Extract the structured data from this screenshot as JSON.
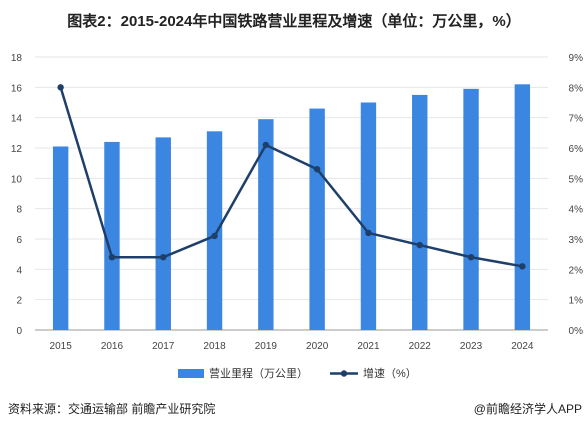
{
  "title": "图表2：2015-2024年中国铁路营业里程及增速（单位：万公里，%）",
  "source": "资料来源：交通运输部  前瞻产业研究院",
  "credit": "@前瞻经济学人APP",
  "chart_data": {
    "type": "bar",
    "categories": [
      "2015",
      "2016",
      "2017",
      "2018",
      "2019",
      "2020",
      "2021",
      "2022",
      "2023",
      "2024"
    ],
    "series": [
      {
        "name": "营业里程（万公里）",
        "type": "bar",
        "axis": "left",
        "color": "#3a86e0",
        "values": [
          12.1,
          12.4,
          12.7,
          13.1,
          13.9,
          14.6,
          15.0,
          15.5,
          15.9,
          16.2
        ]
      },
      {
        "name": "增速（%）",
        "type": "line",
        "axis": "right",
        "color": "#1f3f6b",
        "values": [
          8.0,
          2.4,
          2.4,
          3.1,
          6.1,
          5.3,
          3.2,
          2.8,
          2.4,
          2.1
        ]
      }
    ],
    "ylim_left": [
      0,
      18
    ],
    "yticks_left": [
      "0",
      "2",
      "4",
      "6",
      "8",
      "10",
      "12",
      "14",
      "16",
      "18"
    ],
    "ylim_right": [
      0,
      9
    ],
    "yticks_right": [
      "0%",
      "1%",
      "2%",
      "3%",
      "4%",
      "5%",
      "6%",
      "7%",
      "8%",
      "9%"
    ],
    "legend_position": "bottom"
  }
}
